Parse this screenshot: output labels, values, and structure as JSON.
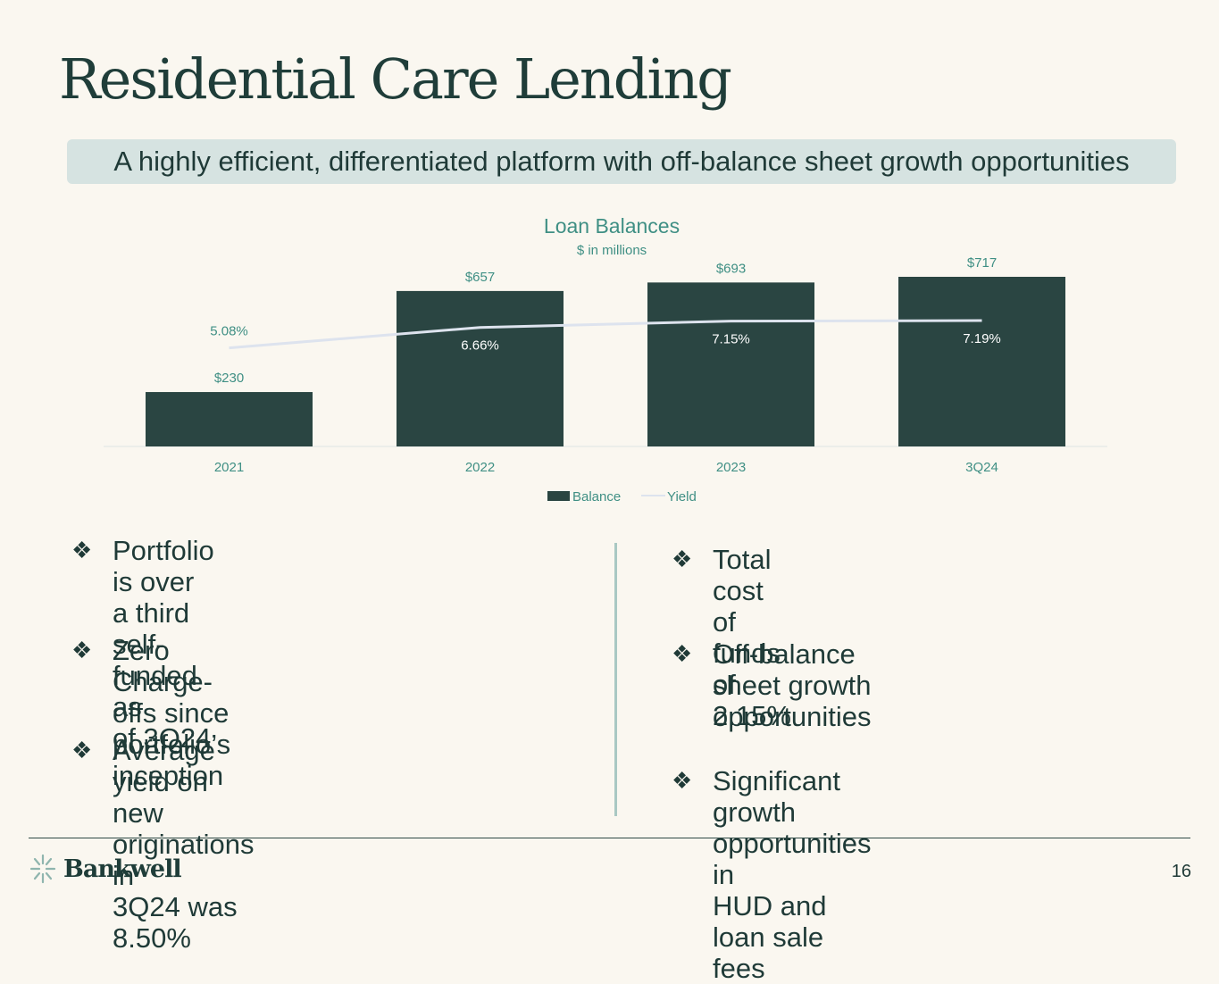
{
  "slide": {
    "title": "Residential Care Lending",
    "banner": "A highly efficient, differentiated platform with off-balance sheet growth opportunities",
    "page_number": "16",
    "logo_text": "Bankwell"
  },
  "bullets_left": [
    {
      "line1": "Portfolio is over a third self-funded as",
      "line2": "of 3Q24"
    },
    {
      "line1": "Zero Charge-offs since portfolio’s",
      "line2": "inception"
    },
    {
      "line1": "Average yield on new originations in",
      "line2": "3Q24 was 8.50%"
    }
  ],
  "bullets_right": [
    {
      "line1": "Total cost of funds of 2.15%",
      "line2": ""
    },
    {
      "line1": "Off-balance sheet growth",
      "line2": "opportunities"
    },
    {
      "line1": "Significant growth opportunities in",
      "line2": "HUD and loan sale fees"
    }
  ],
  "bullet_symbol": "❖",
  "colors": {
    "background": "#faf7f0",
    "bar": "#2a4542",
    "yield_line": "#dde3ee",
    "accent_text": "#3f8f84",
    "banner": "#d6e3e1"
  },
  "chart_data": {
    "type": "bar",
    "title": "Loan Balances",
    "subtitle": "$ in millions",
    "categories": [
      "2021",
      "2022",
      "2023",
      "3Q24"
    ],
    "series": [
      {
        "name": "Balance",
        "type": "bar",
        "values": [
          230,
          657,
          693,
          717
        ],
        "labels": [
          "$230",
          "$657",
          "$693",
          "$717"
        ]
      },
      {
        "name": "Yield",
        "type": "line",
        "values": [
          5.08,
          6.66,
          7.15,
          7.19
        ],
        "labels": [
          "5.08%",
          "6.66%",
          "7.15%",
          "7.19%"
        ]
      }
    ],
    "legend": [
      "Balance",
      "Yield"
    ],
    "legend_position": "bottom",
    "grid": false
  }
}
